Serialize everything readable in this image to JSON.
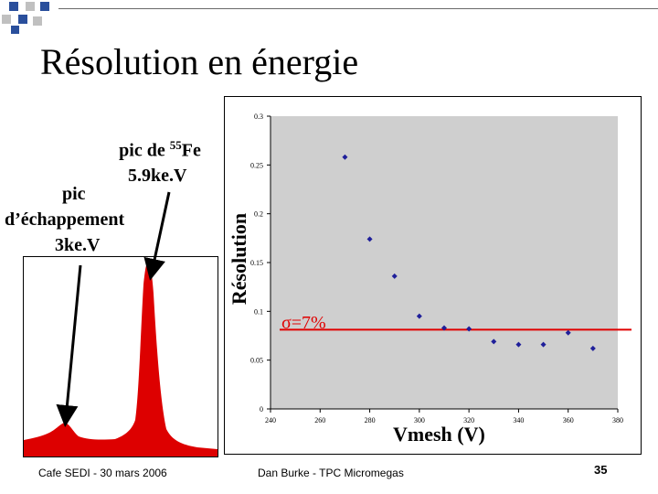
{
  "slide": {
    "title": "Résolution en énergie",
    "footer_left": "Cafe SEDI - 30 mars 2006",
    "footer_center": "Dan Burke - TPC Micromegas",
    "page_number": "35"
  },
  "annotations": {
    "peak_label_prefix": "pic de ",
    "peak_isotope_mass": "55",
    "peak_isotope_symbol": "Fe",
    "peak_energy": "5.9ke.V",
    "escape_line1": "pic",
    "escape_line2": "d’échappement",
    "escape_line3": "3ke.V"
  },
  "colors": {
    "spectrum_fill": "#dd0000",
    "point_color": "#1f1f9a",
    "fit_line": "#e00000",
    "deco_blue": "#2a4f9c",
    "deco_gray": "#c0c0c0"
  },
  "chart_data": {
    "type": "scatter",
    "xlabel": "Vmesh (V)",
    "ylabel": "Résolution",
    "annotation": "σ=7%",
    "xlim": [
      240,
      380
    ],
    "ylim": [
      0,
      0.3
    ],
    "xticks": [
      "240",
      "260",
      "280",
      "300",
      "320",
      "340",
      "360",
      "380"
    ],
    "yticks": [
      "0",
      "0.05",
      "0.1",
      "0.15",
      "0.2",
      "0.25",
      "0.3"
    ],
    "x": [
      270,
      280,
      290,
      300,
      310,
      320,
      330,
      340,
      350,
      360,
      370
    ],
    "y": [
      0.258,
      0.174,
      0.136,
      0.095,
      0.083,
      0.082,
      0.069,
      0.066,
      0.066,
      0.078,
      0.062
    ],
    "reference_line_y": 0.07,
    "grid": false,
    "background": "#cfcfcf"
  }
}
